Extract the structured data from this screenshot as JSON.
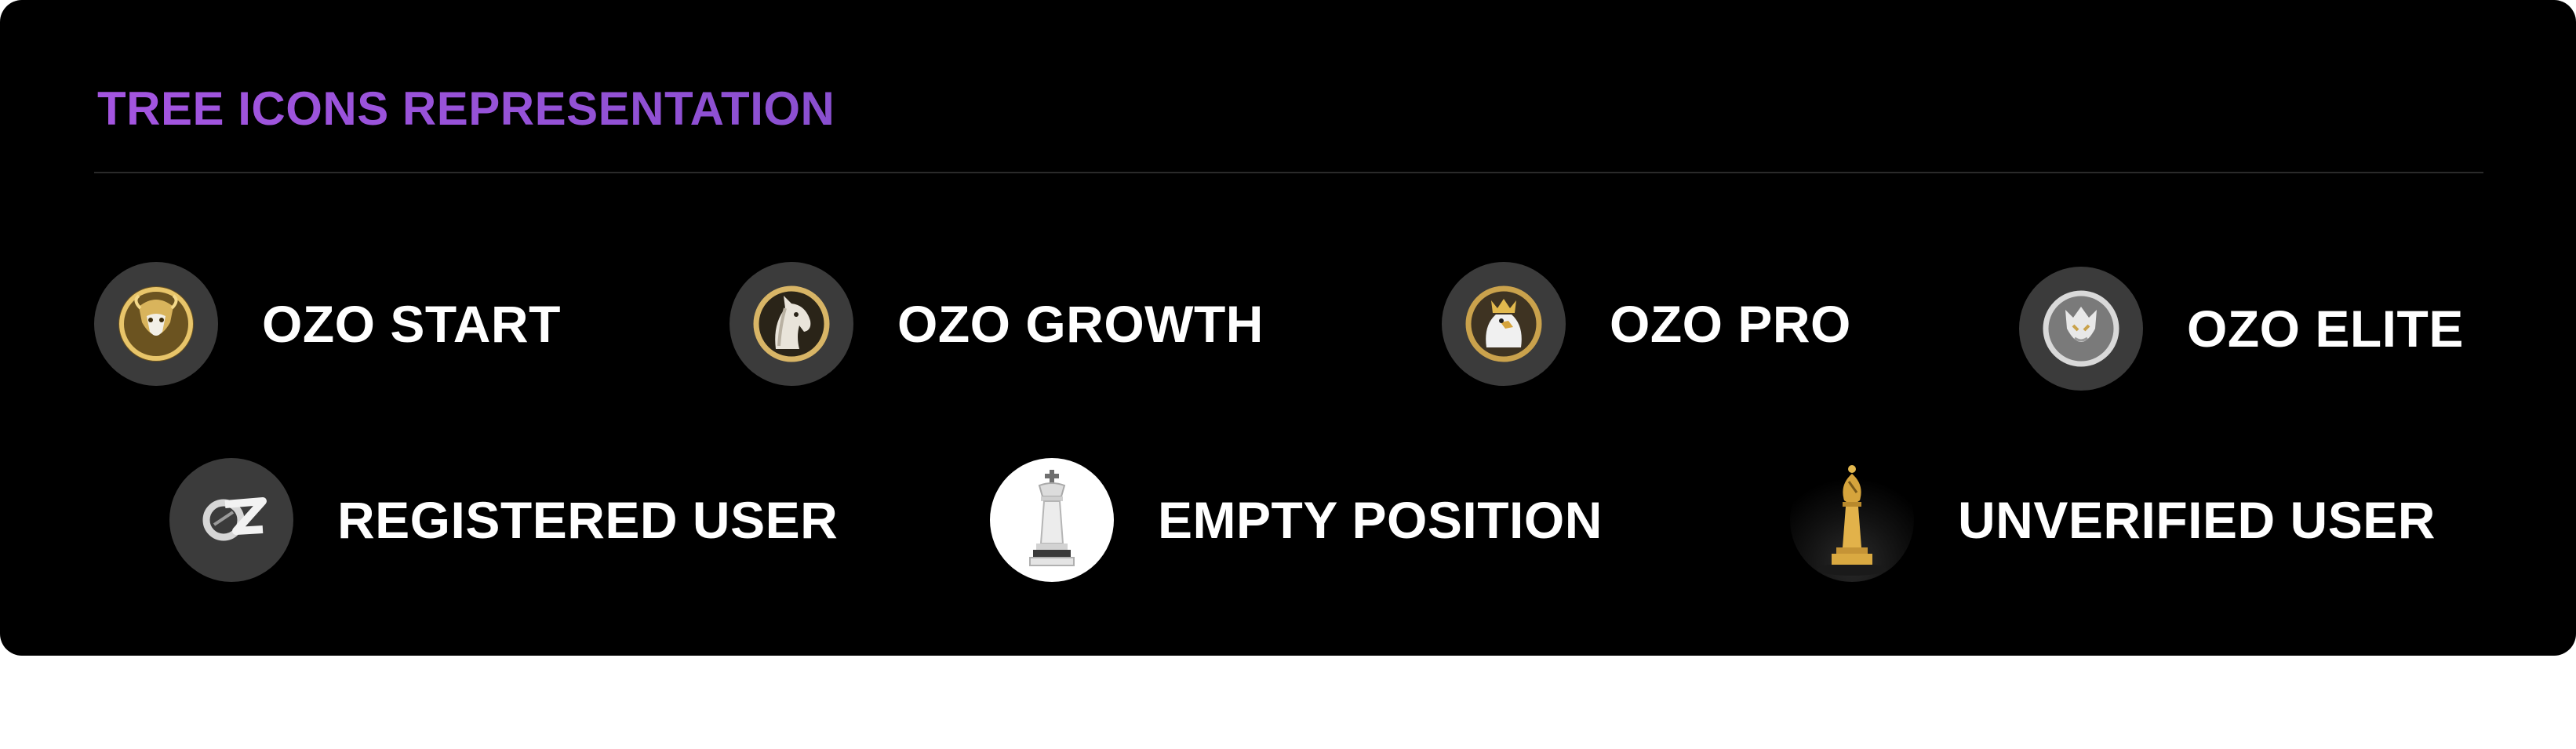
{
  "header": {
    "title": "TREE ICONS REPRESENTATION"
  },
  "legend": {
    "row1": [
      {
        "label": "OZO START",
        "icon": "lion-medallion-icon"
      },
      {
        "label": "OZO GROWTH",
        "icon": "horse-medallion-icon"
      },
      {
        "label": "OZO PRO",
        "icon": "eagle-medallion-icon"
      },
      {
        "label": "OZO ELITE",
        "icon": "dragon-medallion-icon"
      }
    ],
    "row2": [
      {
        "label": "REGISTERED USER",
        "icon": "ozo-logo-icon"
      },
      {
        "label": "EMPTY POSITION",
        "icon": "white-king-chess-icon"
      },
      {
        "label": "UNVERIFIED USER",
        "icon": "gold-bishop-chess-icon"
      }
    ]
  },
  "colors": {
    "background": "#000000",
    "title_gradient_start": "#a455e0",
    "title_gradient_end": "#8a4fd0",
    "label": "#ffffff",
    "icon_circle": "#3b3b3b",
    "gold": "#c9a24a",
    "silver": "#cfcfcf"
  }
}
